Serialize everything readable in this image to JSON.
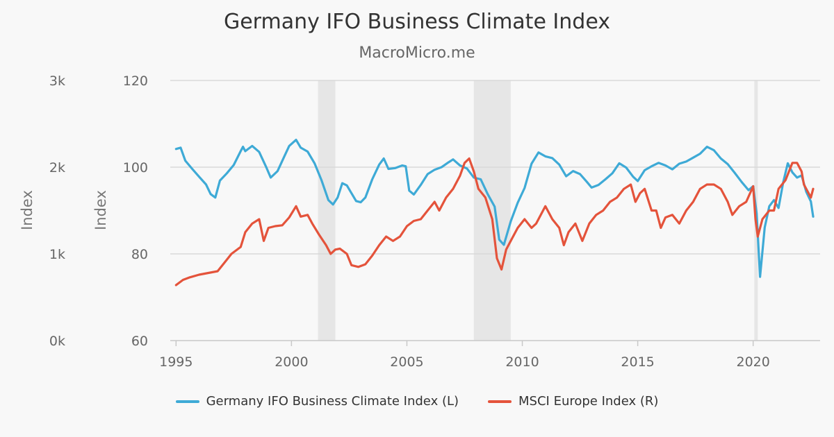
{
  "chart_data": {
    "type": "line",
    "title": "Germany IFO Business Climate Index",
    "subtitle": "MacroMicro.me",
    "xlabel": "",
    "x_ticks": [
      "1995",
      "2000",
      "2005",
      "2010",
      "2015",
      "2020"
    ],
    "xlim": [
      1994.75,
      2022.9
    ],
    "left_axis": {
      "label": "Index",
      "ylim": [
        60,
        120
      ],
      "ticks": [
        "60",
        "80",
        "100",
        "120"
      ]
    },
    "right_axis": {
      "label": "Index",
      "ylim": [
        0,
        3000
      ],
      "ticks": [
        "0k",
        "1k",
        "2k",
        "3k"
      ]
    },
    "recessions": [
      [
        2001.15,
        2001.9
      ],
      [
        2007.9,
        2009.5
      ],
      [
        2020.05,
        2020.2
      ]
    ],
    "series": [
      {
        "name": "Germany IFO Business Climate Index (L)",
        "axis": "left",
        "color": "#3eaad6",
        "x": [
          1995.0,
          1995.2,
          1995.4,
          1995.7,
          1996.0,
          1996.3,
          1996.5,
          1996.7,
          1996.9,
          1997.2,
          1997.5,
          1997.8,
          1997.9,
          1998.0,
          1998.3,
          1998.6,
          1998.9,
          1999.1,
          1999.4,
          1999.7,
          1999.9,
          2000.2,
          2000.4,
          2000.7,
          2001.0,
          2001.3,
          2001.6,
          2001.8,
          2002.0,
          2002.2,
          2002.4,
          2002.6,
          2002.8,
          2003.0,
          2003.2,
          2003.5,
          2003.8,
          2004.0,
          2004.2,
          2004.5,
          2004.8,
          2004.95,
          2005.1,
          2005.3,
          2005.6,
          2005.9,
          2006.2,
          2006.5,
          2006.8,
          2007.0,
          2007.3,
          2007.6,
          2007.9,
          2008.2,
          2008.5,
          2008.8,
          2009.0,
          2009.2,
          2009.5,
          2009.8,
          2010.1,
          2010.4,
          2010.7,
          2011.0,
          2011.3,
          2011.6,
          2011.9,
          2012.2,
          2012.5,
          2012.8,
          2013.0,
          2013.3,
          2013.6,
          2013.9,
          2014.2,
          2014.5,
          2014.8,
          2015.0,
          2015.3,
          2015.6,
          2015.9,
          2016.2,
          2016.5,
          2016.8,
          2017.1,
          2017.4,
          2017.7,
          2018.0,
          2018.3,
          2018.6,
          2018.9,
          2019.2,
          2019.5,
          2019.8,
          2020.0,
          2020.15,
          2020.3,
          2020.5,
          2020.7,
          2020.9,
          2021.1,
          2021.3,
          2021.5,
          2021.7,
          2021.9,
          2022.1,
          2022.3,
          2022.5,
          2022.6
        ],
        "values": [
          104.2,
          104.5,
          101.5,
          99.6,
          97.8,
          96.0,
          93.8,
          93.0,
          96.9,
          98.6,
          100.5,
          103.7,
          104.7,
          103.7,
          104.9,
          103.5,
          100.1,
          97.6,
          99.1,
          102.6,
          104.9,
          106.3,
          104.5,
          103.6,
          100.9,
          97.0,
          92.4,
          91.4,
          93.0,
          96.3,
          95.8,
          94.0,
          92.2,
          91.9,
          93.0,
          97.2,
          100.6,
          102.0,
          99.6,
          99.8,
          100.4,
          100.2,
          94.6,
          93.7,
          95.9,
          98.4,
          99.4,
          100.0,
          101.1,
          101.8,
          100.4,
          99.7,
          97.6,
          97.2,
          93.8,
          90.9,
          83.3,
          82.1,
          87.5,
          91.8,
          95.2,
          100.8,
          103.4,
          102.5,
          102.1,
          100.6,
          97.9,
          99.1,
          98.4,
          96.6,
          95.3,
          95.9,
          97.2,
          98.6,
          100.9,
          99.9,
          97.8,
          96.8,
          99.3,
          100.2,
          101.0,
          100.4,
          99.5,
          100.8,
          101.3,
          102.2,
          103.1,
          104.7,
          103.9,
          102.0,
          100.7,
          98.7,
          96.6,
          94.7,
          95.6,
          89.3,
          74.7,
          86.1,
          91.0,
          92.4,
          90.6,
          96.5,
          100.9,
          98.8,
          97.6,
          98.1,
          94.3,
          92.1,
          88.6
        ]
      },
      {
        "name": "MSCI Europe Index (R)",
        "axis": "right",
        "color": "#e4533b",
        "x": [
          1995.0,
          1995.3,
          1995.6,
          1996.0,
          1996.4,
          1996.8,
          1997.1,
          1997.4,
          1997.8,
          1998.0,
          1998.3,
          1998.6,
          1998.8,
          1999.0,
          1999.3,
          1999.6,
          1999.9,
          2000.2,
          2000.4,
          2000.7,
          2000.9,
          2001.2,
          2001.5,
          2001.7,
          2001.9,
          2002.1,
          2002.4,
          2002.6,
          2002.9,
          2003.2,
          2003.5,
          2003.8,
          2004.1,
          2004.4,
          2004.7,
          2005.0,
          2005.3,
          2005.6,
          2005.9,
          2006.2,
          2006.4,
          2006.7,
          2007.0,
          2007.3,
          2007.5,
          2007.7,
          2007.9,
          2008.1,
          2008.4,
          2008.7,
          2008.9,
          2009.1,
          2009.3,
          2009.5,
          2009.8,
          2010.1,
          2010.4,
          2010.6,
          2010.8,
          2011.0,
          2011.3,
          2011.6,
          2011.8,
          2012.0,
          2012.3,
          2012.6,
          2012.9,
          2013.2,
          2013.5,
          2013.8,
          2014.1,
          2014.4,
          2014.7,
          2014.9,
          2015.1,
          2015.3,
          2015.6,
          2015.8,
          2016.0,
          2016.2,
          2016.5,
          2016.8,
          2017.1,
          2017.4,
          2017.7,
          2018.0,
          2018.3,
          2018.6,
          2018.9,
          2019.1,
          2019.4,
          2019.7,
          2020.0,
          2020.1,
          2020.2,
          2020.4,
          2020.7,
          2020.9,
          2021.1,
          2021.4,
          2021.7,
          2021.9,
          2022.1,
          2022.2,
          2022.4,
          2022.5,
          2022.6
        ],
        "values": [
          640,
          700,
          730,
          760,
          780,
          800,
          900,
          1000,
          1080,
          1250,
          1350,
          1400,
          1150,
          1300,
          1320,
          1330,
          1420,
          1550,
          1430,
          1450,
          1350,
          1220,
          1100,
          1000,
          1050,
          1060,
          1000,
          870,
          850,
          880,
          980,
          1100,
          1200,
          1150,
          1200,
          1320,
          1380,
          1400,
          1500,
          1600,
          1500,
          1650,
          1750,
          1900,
          2050,
          2100,
          1950,
          1750,
          1650,
          1400,
          950,
          820,
          1050,
          1150,
          1300,
          1400,
          1300,
          1350,
          1450,
          1550,
          1400,
          1300,
          1100,
          1250,
          1350,
          1150,
          1350,
          1450,
          1500,
          1600,
          1650,
          1750,
          1800,
          1600,
          1700,
          1750,
          1500,
          1500,
          1300,
          1420,
          1450,
          1350,
          1500,
          1600,
          1750,
          1800,
          1800,
          1750,
          1600,
          1450,
          1550,
          1600,
          1780,
          1400,
          1200,
          1400,
          1500,
          1500,
          1750,
          1850,
          2050,
          2050,
          1950,
          1800,
          1700,
          1650,
          1750
        ]
      }
    ]
  }
}
